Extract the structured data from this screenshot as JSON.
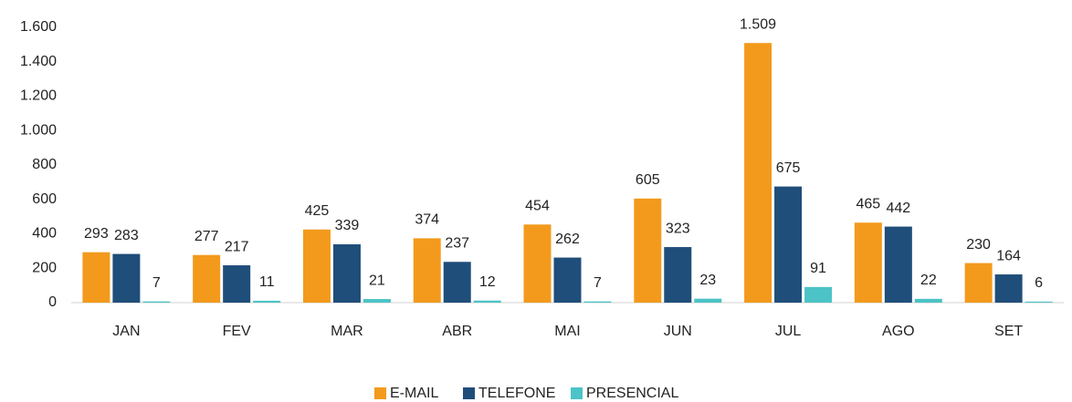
{
  "chart_data": {
    "type": "bar",
    "categories": [
      "JAN",
      "FEV",
      "MAR",
      "ABR",
      "MAI",
      "JUN",
      "JUL",
      "AGO",
      "SET"
    ],
    "series": [
      {
        "name": "E-MAIL",
        "color": "#f39a1c",
        "values": [
          293,
          277,
          425,
          374,
          454,
          605,
          1509,
          465,
          230
        ],
        "value_labels": [
          "293",
          "277",
          "425",
          "374",
          "454",
          "605",
          "1.509",
          "465",
          "230"
        ]
      },
      {
        "name": "TELEFONE",
        "color": "#1f4e7a",
        "values": [
          283,
          217,
          339,
          237,
          262,
          323,
          675,
          442,
          164
        ]
      },
      {
        "name": "PRESENCIAL",
        "color": "#4cc3c6",
        "values": [
          7,
          11,
          21,
          12,
          7,
          23,
          91,
          22,
          6
        ]
      }
    ],
    "ylim": [
      0,
      1600
    ],
    "yticks": [
      0,
      200,
      400,
      600,
      800,
      {
        "value": 1000,
        "label": "1.000"
      },
      {
        "value": 1200,
        "label": "1.200"
      },
      {
        "value": 1400,
        "label": "1.400"
      },
      {
        "value": 1600,
        "label": "1.600"
      }
    ],
    "grid": false,
    "legend": "bottom"
  }
}
